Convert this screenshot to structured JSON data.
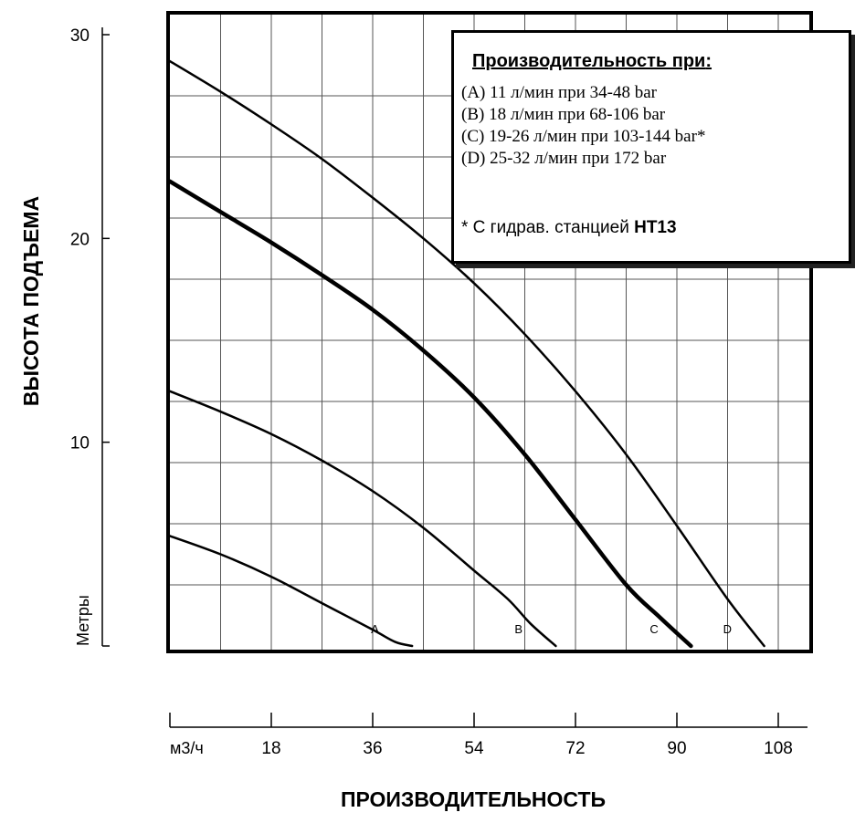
{
  "chart_data": {
    "type": "line",
    "title": "",
    "xlabel": "ПРОИЗВОДИТЕЛЬНОСТЬ",
    "ylabel": "ВЫСОТА ПОДЪЕМА",
    "x_unit": "м3/ч",
    "y_unit": "Метры",
    "xlim": [
      0,
      118
    ],
    "ylim": [
      0,
      30
    ],
    "x_ticks": [
      18,
      36,
      54,
      72,
      90,
      108
    ],
    "y_ticks": [
      10,
      20,
      30
    ],
    "grid": true,
    "series": [
      {
        "name": "A",
        "x": [
          0,
          9,
          18,
          27,
          36,
          40,
          43
        ],
        "y": [
          5.4,
          4.5,
          3.4,
          2.1,
          0.8,
          0.2,
          0
        ]
      },
      {
        "name": "B",
        "x": [
          0,
          9,
          18,
          27,
          36,
          45,
          54,
          60,
          64,
          68.5
        ],
        "y": [
          12.5,
          11.5,
          10.4,
          9.1,
          7.6,
          5.8,
          3.7,
          2.3,
          1.1,
          0
        ]
      },
      {
        "name": "C",
        "x": [
          0,
          9,
          18,
          27,
          36,
          45,
          54,
          63,
          72,
          81,
          87,
          92.5
        ],
        "y": [
          22.8,
          21.3,
          19.8,
          18.2,
          16.5,
          14.5,
          12.2,
          9.4,
          6.2,
          3.0,
          1.4,
          0
        ]
      },
      {
        "name": "D",
        "x": [
          0,
          9,
          18,
          27,
          36,
          45,
          54,
          63,
          72,
          81,
          90,
          99,
          105.5
        ],
        "y": [
          28.7,
          27.2,
          25.6,
          23.9,
          22.0,
          20.0,
          17.8,
          15.3,
          12.5,
          9.4,
          5.9,
          2.3,
          0
        ]
      }
    ]
  },
  "legend": {
    "title": "Производительность при",
    "title_suffix": ":",
    "items": [
      "(A) 11 л/мин при 34-48 bar",
      "(B) 18 л/мин при 68-106 bar",
      "(C) 19-26 л/мин при 103-144 bar*",
      "(D) 25-32 л/мин при 172 bar"
    ],
    "note_prefix": "* С гидрав. станцией ",
    "note_bold": "HT13"
  }
}
